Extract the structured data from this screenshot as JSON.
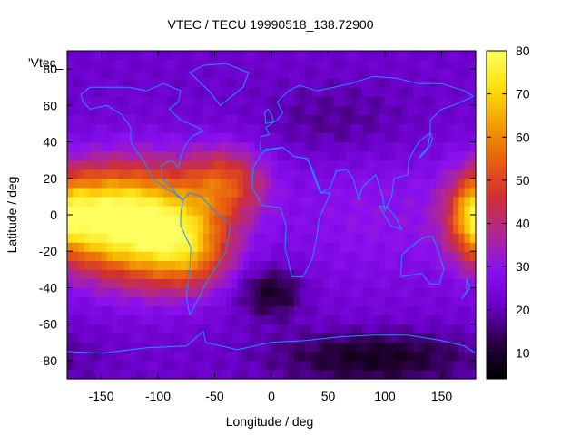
{
  "chart_data": {
    "type": "heatmap",
    "title": "VTEC / TECU 19990518_138.72900",
    "xlabel": "Longitude / deg",
    "ylabel": "Latitude / deg",
    "key_label": "'Vtec_",
    "xlim": [
      -180,
      180
    ],
    "ylim": [
      -90,
      90
    ],
    "x_ticks": [
      -150,
      -100,
      -50,
      0,
      50,
      100,
      150
    ],
    "y_ticks": [
      -80,
      -60,
      -40,
      -20,
      0,
      20,
      40,
      60,
      80
    ],
    "colorbar": {
      "range": [
        4,
        80
      ],
      "ticks": [
        10,
        20,
        30,
        40,
        50,
        60,
        70,
        80
      ]
    },
    "palette": [
      "#000000",
      "#2a0040",
      "#6a00c8",
      "#8a10f0",
      "#b02890",
      "#d03030",
      "#e86010",
      "#f2a000",
      "#ffe010",
      "#ffff60"
    ],
    "coastline_color": "#1e90ff",
    "grid": false,
    "cell_size_deg": [
      5,
      5
    ],
    "features": [
      {
        "lon": -110,
        "lat": -5,
        "sx": 40,
        "sy": 22,
        "amp": 55
      },
      {
        "lon": -70,
        "lat": -20,
        "sx": 25,
        "sy": 15,
        "amp": 22
      },
      {
        "lon": -40,
        "lat": 18,
        "sx": 25,
        "sy": 14,
        "amp": 25
      },
      {
        "lon": -160,
        "lat": 0,
        "sx": 28,
        "sy": 18,
        "amp": 28
      },
      {
        "lon": 178,
        "lat": 0,
        "sx": 14,
        "sy": 15,
        "amp": 22
      },
      {
        "lon": 90,
        "lat": 0,
        "sx": 70,
        "sy": 30,
        "amp": 8
      },
      {
        "lon": 0,
        "lat": -42,
        "sx": 20,
        "sy": 10,
        "amp": -14
      },
      {
        "lon": 90,
        "lat": -78,
        "sx": 60,
        "sy": 10,
        "amp": -14
      },
      {
        "lon": 60,
        "lat": 50,
        "sx": 50,
        "sy": 15,
        "amp": -6
      }
    ],
    "base_value": 22
  }
}
